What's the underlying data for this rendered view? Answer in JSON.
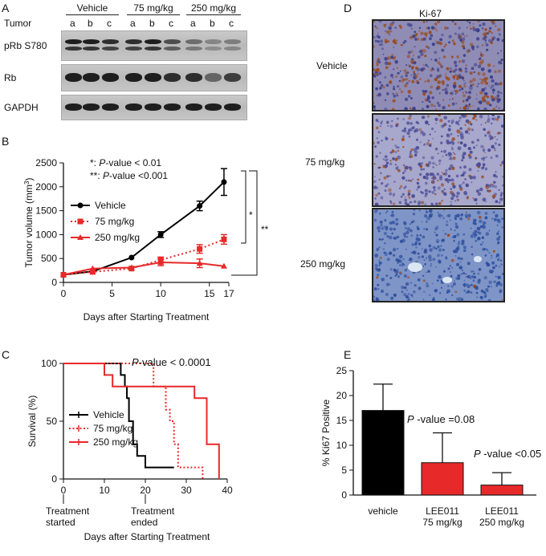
{
  "panels": {
    "A": "A",
    "B": "B",
    "C": "C",
    "D": "D",
    "E": "E"
  },
  "westernBlot": {
    "tumor_label": "Tumor",
    "groups": [
      "Vehicle",
      "75 mg/kg",
      "250 mg/kg"
    ],
    "lanes": [
      "a",
      "b",
      "c",
      "a",
      "b",
      "c",
      "a",
      "b",
      "c"
    ],
    "rows": [
      "pRb S780",
      "Rb",
      "GAPDH"
    ],
    "intensity": {
      "pRb S780": [
        1.0,
        1.0,
        0.9,
        0.9,
        1.0,
        0.7,
        0.5,
        0.35,
        0.4
      ],
      "Rb": [
        1.0,
        1.0,
        1.0,
        1.0,
        1.0,
        0.9,
        0.9,
        0.55,
        0.8
      ],
      "GAPDH": [
        1.0,
        1.0,
        1.0,
        1.0,
        1.0,
        1.0,
        1.0,
        1.0,
        1.0
      ]
    }
  },
  "panelB": {
    "annot1_sym": "*: ",
    "annot1_p": "P",
    "annot1_rest": "-value < 0.01",
    "annot2_sym": "**: ",
    "annot2_p": "P",
    "annot2_rest": "-value <0.001",
    "sig1": "*",
    "sig2": "**"
  },
  "panelC": {
    "annot_p": "P",
    "annot_rest": "-value < 0.0001",
    "started": "Treatment\nstarted",
    "ended": "Treatment\nended"
  },
  "panelD": {
    "title": "Ki-67",
    "images": [
      "Vehicle",
      "75 mg/kg",
      "250 mg/kg"
    ]
  },
  "panelE": {
    "annot1_p": "P",
    "annot1_rest": " -value =0.08",
    "annot2_p": "P",
    "annot2_rest": " -value <0.05"
  },
  "chart_data": [
    {
      "type": "line",
      "xlabel": "Days after Starting Treatment",
      "ylabel": "Tumor volume (mm³)",
      "xlim": [
        0,
        17
      ],
      "ylim": [
        0,
        2500
      ],
      "xticks": [
        0,
        5,
        10,
        15,
        17
      ],
      "yticks": [
        0,
        500,
        1000,
        1500,
        2000,
        2500
      ],
      "legend": "top-left",
      "series": [
        {
          "name": "Vehicle",
          "color": "#000000",
          "style": "solid",
          "marker": "circle",
          "x": [
            0,
            3,
            7,
            10,
            14,
            16.5
          ],
          "y": [
            160,
            230,
            520,
            1000,
            1600,
            2100
          ],
          "err": [
            0,
            0,
            0,
            60,
            100,
            280
          ]
        },
        {
          "name": "75 mg/kg",
          "color": "#e8292a",
          "style": "dotted",
          "marker": "square",
          "x": [
            0,
            3,
            7,
            10,
            14,
            16.5
          ],
          "y": [
            160,
            220,
            290,
            470,
            700,
            900
          ],
          "err": [
            0,
            0,
            0,
            60,
            90,
            100
          ]
        },
        {
          "name": "250 mg/kg",
          "color": "#e8292a",
          "style": "solid",
          "marker": "triangle",
          "x": [
            0,
            3,
            7,
            10,
            14,
            16.5
          ],
          "y": [
            160,
            290,
            310,
            420,
            400,
            340
          ],
          "err": [
            0,
            0,
            0,
            70,
            90,
            0
          ]
        }
      ]
    },
    {
      "type": "line",
      "xlabel": "Days after Starting Treatment",
      "ylabel": "Survival (%)",
      "xlim": [
        0,
        40
      ],
      "ylim": [
        0,
        100
      ],
      "xticks": [
        0,
        10,
        20,
        30,
        40
      ],
      "yticks": [
        0,
        50,
        100
      ],
      "legend": "bottom-left",
      "series": [
        {
          "name": "Vehicle",
          "color": "#000000",
          "style": "solid",
          "x": [
            0,
            14,
            14,
            15,
            15,
            15.5,
            15.5,
            16,
            16,
            17,
            17,
            18,
            18,
            20,
            20,
            27
          ],
          "y": [
            100,
            100,
            90,
            90,
            80,
            80,
            70,
            70,
            50,
            50,
            30,
            30,
            20,
            20,
            10,
            10
          ]
        },
        {
          "name": "75 mg/kg",
          "color": "#e8292a",
          "style": "dotted",
          "x": [
            0,
            22,
            22,
            25,
            25,
            26,
            26,
            27,
            27,
            28,
            28,
            34,
            34
          ],
          "y": [
            100,
            100,
            80,
            80,
            60,
            60,
            50,
            50,
            30,
            30,
            10,
            10,
            0
          ]
        },
        {
          "name": "250 mg/kg",
          "color": "#e8292a",
          "style": "solid",
          "x": [
            0,
            10,
            10,
            12,
            12,
            32,
            32,
            35,
            35,
            38,
            38
          ],
          "y": [
            100,
            100,
            90,
            90,
            80,
            80,
            70,
            70,
            30,
            30,
            0
          ]
        }
      ]
    },
    {
      "type": "bar",
      "ylabel": "% Ki67 Positive",
      "ylim": [
        0,
        25
      ],
      "yticks": [
        0,
        5,
        10,
        15,
        20,
        25
      ],
      "categories": [
        "vehicle",
        "LEE011\n75 mg/kg",
        "LEE011\n250 mg/kg"
      ],
      "values": [
        17,
        6.5,
        2
      ],
      "errors": [
        5.3,
        6,
        2.5
      ],
      "colors": [
        "#000000",
        "#e8292a",
        "#e8292a"
      ]
    }
  ]
}
